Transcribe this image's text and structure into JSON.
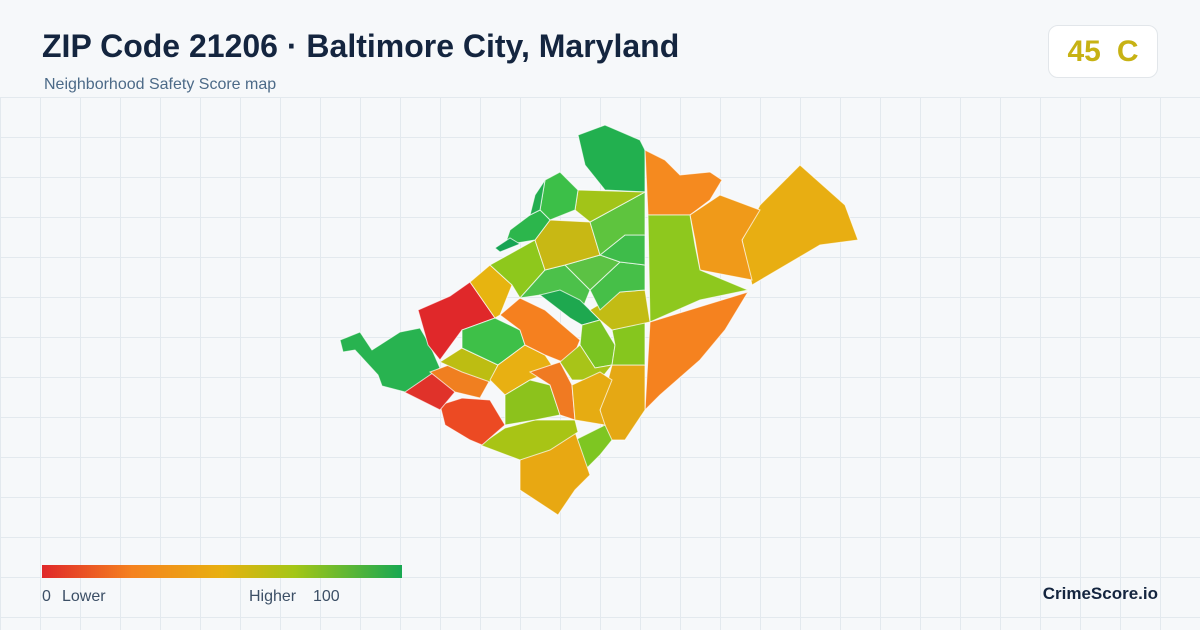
{
  "header": {
    "title": "ZIP Code 21206 · Baltimore City, Maryland",
    "subtitle": "Neighborhood Safety Score map"
  },
  "score": {
    "value": 45,
    "grade": "C"
  },
  "legend": {
    "min": 0,
    "min_label": "Lower",
    "max_label": "Higher",
    "max": 100
  },
  "brand": "CrimeScore.io"
}
